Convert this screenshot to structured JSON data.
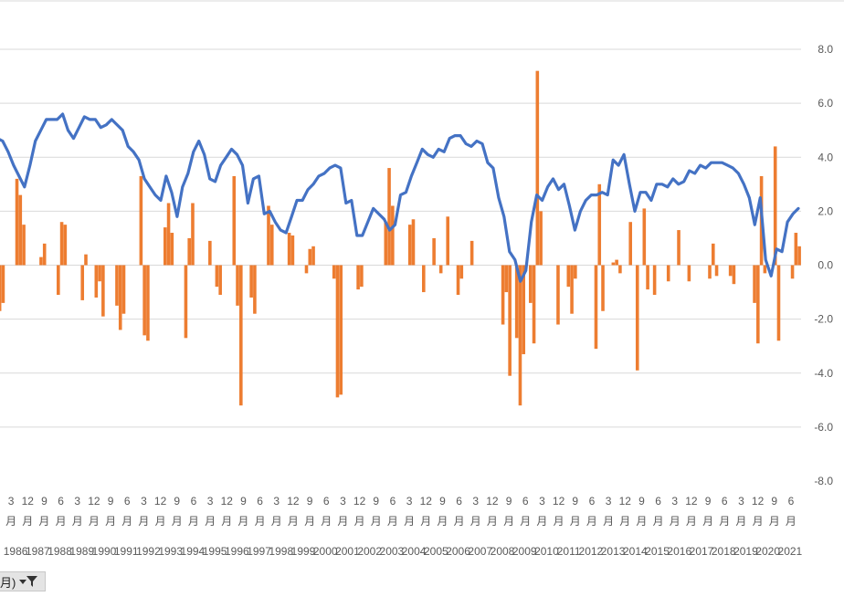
{
  "chart_data": {
    "type": "combo-bar-line",
    "ylim": [
      -8.0,
      8.0
    ],
    "y_ticks": [
      "8.0",
      "6.0",
      "4.0",
      "2.0",
      "0.0",
      "-2.0",
      "-4.0",
      "-6.0",
      "-8.0"
    ],
    "x_month_labels": [
      "3",
      "12",
      "9",
      "6",
      "3",
      "12",
      "9",
      "6",
      "3",
      "12",
      "9",
      "6",
      "3",
      "12",
      "9",
      "6",
      "3",
      "12",
      "9",
      "6",
      "3",
      "12",
      "9",
      "6",
      "3",
      "12",
      "9",
      "6",
      "3",
      "12",
      "9",
      "6",
      "3",
      "12",
      "9",
      "6",
      "3",
      "12",
      "9",
      "6",
      "3",
      "12",
      "9",
      "6",
      "3",
      "12",
      "9",
      "6"
    ],
    "month_unit": "月",
    "x_year_labels": [
      "1986",
      "1987",
      "1988",
      "1989",
      "1990",
      "1991",
      "1992",
      "1993",
      "1994",
      "1995",
      "1996",
      "1997",
      "1998",
      "1999",
      "2000",
      "2001",
      "2002",
      "2003",
      "2004",
      "2005",
      "2006",
      "2007",
      "2008",
      "2009",
      "2010",
      "2011",
      "2012",
      "2013",
      "2014",
      "2015",
      "2016",
      "2017",
      "2018",
      "2019",
      "2020",
      "2021"
    ],
    "grid": true,
    "colors": {
      "line": "#4472c4",
      "bar": "#ed7d31",
      "grid": "#d9d9d9"
    },
    "line_series": {
      "y": [
        4.7,
        4.6,
        4.2,
        3.7,
        3.3,
        2.9,
        3.7,
        4.6,
        5.0,
        5.4,
        5.4,
        5.4,
        5.6,
        5.0,
        4.7,
        5.1,
        5.5,
        5.4,
        5.4,
        5.1,
        5.2,
        5.4,
        5.2,
        5.0,
        4.4,
        4.2,
        3.9,
        3.2,
        2.9,
        2.6,
        2.4,
        3.3,
        2.7,
        1.8,
        2.9,
        3.4,
        4.2,
        4.6,
        4.1,
        3.2,
        3.1,
        3.7,
        4.0,
        4.3,
        4.1,
        3.7,
        2.3,
        3.2,
        3.3,
        1.9,
        2.0,
        1.6,
        1.3,
        1.2,
        1.8,
        2.4,
        2.4,
        2.8,
        3.0,
        3.3,
        3.4,
        3.6,
        3.7,
        3.6,
        2.3,
        2.4,
        1.1,
        1.1,
        1.6,
        2.1,
        1.9,
        1.7,
        1.3,
        1.5,
        2.6,
        2.7,
        3.3,
        3.8,
        4.3,
        4.1,
        4.0,
        4.3,
        4.2,
        4.7,
        4.8,
        4.8,
        4.5,
        4.4,
        4.6,
        4.5,
        3.8,
        3.6,
        2.5,
        1.8,
        0.5,
        0.2,
        -0.6,
        -0.2,
        1.6,
        2.6,
        2.4,
        2.9,
        3.2,
        2.8,
        3.0,
        2.2,
        1.3,
        2.0,
        2.4,
        2.6,
        2.6,
        2.7,
        2.6,
        3.9,
        3.7,
        4.1,
        3.0,
        2.0,
        2.7,
        2.7,
        2.4,
        3.0,
        3.0,
        2.9,
        3.2,
        3.0,
        3.1,
        3.5,
        3.4,
        3.7,
        3.6,
        3.8,
        3.8,
        3.8,
        3.7,
        3.6,
        3.4,
        3.0,
        2.5,
        1.5,
        2.5,
        0.2,
        -0.4,
        0.6,
        0.5,
        1.6,
        1.9,
        2.1
      ]
    },
    "bar_series": {
      "values": [
        -1.0,
        -1.7,
        -1.4,
        0.0,
        0.0,
        0.0,
        3.2,
        2.6,
        1.5,
        0.0,
        0.0,
        0.0,
        0.0,
        0.3,
        0.8,
        0.0,
        0.0,
        0.0,
        -1.1,
        1.6,
        1.5,
        0.0,
        0.0,
        0.0,
        0.0,
        -1.3,
        0.4,
        0.0,
        0.0,
        -1.2,
        -0.6,
        -1.9,
        0.0,
        0.0,
        0.0,
        -1.5,
        -2.4,
        -1.8,
        0.0,
        0.0,
        0.0,
        0.0,
        3.3,
        -2.6,
        -2.8,
        0.0,
        0.0,
        0.0,
        0.0,
        1.4,
        2.3,
        1.2,
        0.0,
        0.0,
        0.0,
        -2.7,
        1.0,
        2.3,
        0.0,
        0.0,
        0.0,
        0.0,
        0.9,
        0.0,
        -0.8,
        -1.1,
        0.0,
        0.0,
        0.0,
        3.3,
        -1.5,
        -5.2,
        0.0,
        0.0,
        -1.2,
        -1.8,
        0.0,
        0.0,
        0.0,
        2.2,
        1.5,
        0.0,
        0.0,
        0.0,
        0.0,
        1.2,
        1.1,
        0.0,
        0.0,
        0.0,
        -0.3,
        0.6,
        0.7,
        0.0,
        0.0,
        0.0,
        0.0,
        0.0,
        -0.5,
        -4.9,
        -4.8,
        0.0,
        0.0,
        0.0,
        0.0,
        -0.9,
        -0.8,
        0.0,
        0.0,
        0.0,
        0.0,
        0.0,
        0.0,
        1.6,
        3.6,
        2.2,
        0.0,
        0.0,
        0.0,
        0.0,
        1.5,
        1.7,
        0.0,
        0.0,
        -1.0,
        0.0,
        0.0,
        1.0,
        0.0,
        -0.3,
        0.0,
        1.8,
        0.0,
        0.0,
        -1.1,
        -0.5,
        0.0,
        0.0,
        0.9,
        0.0,
        0.0,
        0.0,
        0.0,
        0.0,
        0.0,
        0.0,
        0.0,
        -2.2,
        -1.0,
        -4.1,
        0.0,
        -2.7,
        -5.2,
        -3.3,
        0.0,
        -1.4,
        -2.9,
        7.2,
        2.0,
        0.0,
        0.0,
        0.0,
        0.0,
        -2.2,
        0.0,
        0.0,
        -0.8,
        -1.8,
        -0.5,
        0.0,
        0.0,
        0.0,
        0.0,
        0.0,
        -3.1,
        3.0,
        -1.7,
        0.0,
        0.0,
        0.1,
        0.2,
        -0.3,
        0.0,
        0.0,
        1.6,
        0.0,
        -3.9,
        0.0,
        2.1,
        -0.9,
        0.0,
        -1.1,
        0.0,
        0.0,
        0.0,
        -0.6,
        0.0,
        0.0,
        1.3,
        0.0,
        0.0,
        -0.6,
        0.0,
        0.0,
        0.0,
        0.0,
        0.0,
        -0.5,
        0.8,
        -0.4,
        0.0,
        0.0,
        0.0,
        -0.4,
        -0.7,
        0.0,
        0.0,
        0.0,
        0.0,
        0.0,
        -1.4,
        -2.9,
        3.3,
        -0.3,
        0.0,
        0.0,
        4.4,
        -2.8,
        0.0,
        0.0,
        0.0,
        -0.5,
        1.2,
        0.7
      ]
    }
  },
  "filter": {
    "label": "月)",
    "icons": [
      "dropdown-caret-icon",
      "funnel-filter-icon"
    ]
  }
}
